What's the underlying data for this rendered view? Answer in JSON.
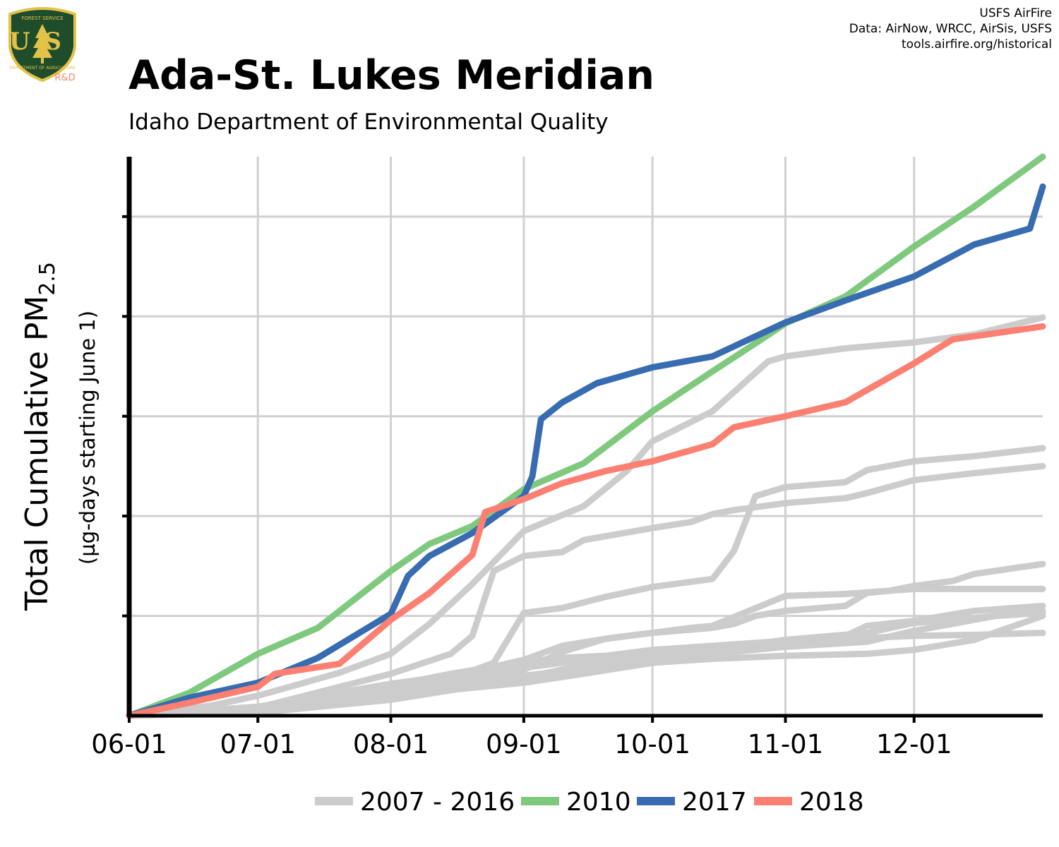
{
  "header": {
    "title": "Ada-St. Lukes Meridian",
    "subtitle": "Idaho Department of Environmental Quality",
    "credits": [
      "USFS AirFire",
      "Data: AirNow, WRCC, AirSis, USFS",
      "tools.airfire.org/historical"
    ],
    "logo": {
      "shield_text": "US",
      "top_text": "FOREST SERVICE",
      "bottom_text": "DEPARTMENT OF AGRICULTURE",
      "badge": "R&D",
      "colors": {
        "shield": "#1f4d2c",
        "gold": "#e3c24a",
        "badge": "#f48772"
      }
    }
  },
  "chart_data": {
    "type": "line",
    "ylabel_main": "Total Cumulative PM",
    "ylabel_sub": "2.5",
    "ylabel_secondary": "(µg-days starting June 1)",
    "xlim": [
      "06-01",
      "12-31"
    ],
    "ylim": [
      0,
      5600
    ],
    "y_ticks": [
      1000,
      2000,
      3000,
      4000,
      5000
    ],
    "y_tick_labels_shown": false,
    "x_ticks": [
      "06-01",
      "07-01",
      "08-01",
      "09-01",
      "10-01",
      "11-01",
      "12-01"
    ],
    "grid": true,
    "legend_position": "bottom",
    "legend": [
      {
        "label": "2007 - 2016",
        "color": "#cccccc"
      },
      {
        "label": "2010",
        "color": "#7fc97f"
      },
      {
        "label": "2017",
        "color": "#386cb0"
      },
      {
        "label": "2018",
        "color": "#fb8072"
      }
    ],
    "series": [
      {
        "legend_group": 0,
        "color": "#cccccc",
        "points": [
          [
            "06-01",
            0
          ],
          [
            "06-20",
            100
          ],
          [
            "07-01",
            200
          ],
          [
            "07-20",
            430
          ],
          [
            "08-01",
            620
          ],
          [
            "08-10",
            920
          ],
          [
            "08-20",
            1320
          ],
          [
            "09-01",
            1850
          ],
          [
            "09-15",
            2100
          ],
          [
            "09-25",
            2450
          ],
          [
            "10-01",
            2750
          ],
          [
            "10-15",
            3050
          ],
          [
            "10-28",
            3550
          ],
          [
            "11-01",
            3600
          ],
          [
            "11-15",
            3680
          ],
          [
            "12-01",
            3740
          ],
          [
            "12-15",
            3820
          ],
          [
            "12-31",
            3990
          ]
        ]
      },
      {
        "legend_group": 0,
        "color": "#cccccc",
        "points": [
          [
            "06-01",
            0
          ],
          [
            "07-01",
            80
          ],
          [
            "08-01",
            420
          ],
          [
            "08-15",
            620
          ],
          [
            "08-20",
            800
          ],
          [
            "08-25",
            1450
          ],
          [
            "09-01",
            1600
          ],
          [
            "09-10",
            1640
          ],
          [
            "09-15",
            1760
          ],
          [
            "10-01",
            1880
          ],
          [
            "10-10",
            1940
          ],
          [
            "10-15",
            2020
          ],
          [
            "10-20",
            2060
          ],
          [
            "11-01",
            2130
          ],
          [
            "11-15",
            2180
          ],
          [
            "11-20",
            2230
          ],
          [
            "12-01",
            2360
          ],
          [
            "12-15",
            2430
          ],
          [
            "12-31",
            2500
          ]
        ]
      },
      {
        "legend_group": 0,
        "color": "#cccccc",
        "points": [
          [
            "06-01",
            0
          ],
          [
            "07-01",
            40
          ],
          [
            "08-01",
            250
          ],
          [
            "08-15",
            370
          ],
          [
            "08-25",
            530
          ],
          [
            "09-01",
            1030
          ],
          [
            "09-10",
            1080
          ],
          [
            "09-20",
            1190
          ],
          [
            "10-01",
            1290
          ],
          [
            "10-15",
            1370
          ],
          [
            "10-20",
            1650
          ],
          [
            "10-25",
            2200
          ],
          [
            "11-01",
            2290
          ],
          [
            "11-15",
            2340
          ],
          [
            "11-20",
            2460
          ],
          [
            "12-01",
            2550
          ],
          [
            "12-15",
            2600
          ],
          [
            "12-31",
            2680
          ]
        ]
      },
      {
        "legend_group": 0,
        "color": "#cccccc",
        "points": [
          [
            "06-01",
            0
          ],
          [
            "07-01",
            80
          ],
          [
            "08-01",
            270
          ],
          [
            "08-20",
            440
          ],
          [
            "09-01",
            560
          ],
          [
            "09-10",
            700
          ],
          [
            "09-20",
            770
          ],
          [
            "10-01",
            830
          ],
          [
            "10-15",
            880
          ],
          [
            "10-20",
            920
          ],
          [
            "10-25",
            1000
          ],
          [
            "11-01",
            1050
          ],
          [
            "11-15",
            1100
          ],
          [
            "11-20",
            1230
          ],
          [
            "11-25",
            1250
          ],
          [
            "12-01",
            1300
          ],
          [
            "12-10",
            1350
          ],
          [
            "12-15",
            1420
          ],
          [
            "12-31",
            1520
          ]
        ]
      },
      {
        "legend_group": 0,
        "color": "#cccccc",
        "points": [
          [
            "06-01",
            0
          ],
          [
            "07-01",
            50
          ],
          [
            "08-01",
            230
          ],
          [
            "09-01",
            460
          ],
          [
            "09-10",
            640
          ],
          [
            "09-20",
            770
          ],
          [
            "09-25",
            800
          ],
          [
            "10-01",
            830
          ],
          [
            "10-10",
            880
          ],
          [
            "10-15",
            900
          ],
          [
            "11-01",
            1200
          ],
          [
            "11-15",
            1220
          ],
          [
            "12-01",
            1270
          ],
          [
            "12-15",
            1270
          ],
          [
            "12-31",
            1270
          ]
        ]
      },
      {
        "legend_group": 0,
        "color": "#cccccc",
        "points": [
          [
            "06-01",
            0
          ],
          [
            "07-01",
            70
          ],
          [
            "08-01",
            300
          ],
          [
            "08-15",
            420
          ],
          [
            "09-01",
            540
          ],
          [
            "09-10",
            580
          ],
          [
            "09-20",
            600
          ],
          [
            "10-01",
            660
          ],
          [
            "10-15",
            700
          ],
          [
            "11-01",
            750
          ],
          [
            "11-15",
            800
          ],
          [
            "11-20",
            900
          ],
          [
            "12-01",
            950
          ],
          [
            "12-15",
            1050
          ],
          [
            "12-31",
            1100
          ]
        ]
      },
      {
        "legend_group": 0,
        "color": "#cccccc",
        "points": [
          [
            "06-01",
            0
          ],
          [
            "07-01",
            90
          ],
          [
            "08-01",
            320
          ],
          [
            "08-20",
            430
          ],
          [
            "09-01",
            480
          ],
          [
            "09-15",
            560
          ],
          [
            "10-01",
            610
          ],
          [
            "10-15",
            660
          ],
          [
            "11-01",
            760
          ],
          [
            "11-20",
            830
          ],
          [
            "12-01",
            930
          ],
          [
            "12-15",
            980
          ],
          [
            "12-31",
            1050
          ]
        ]
      },
      {
        "legend_group": 0,
        "color": "#cccccc",
        "points": [
          [
            "06-01",
            0
          ],
          [
            "07-01",
            60
          ],
          [
            "08-01",
            240
          ],
          [
            "08-20",
            330
          ],
          [
            "09-01",
            400
          ],
          [
            "09-15",
            470
          ],
          [
            "10-01",
            560
          ],
          [
            "10-15",
            620
          ],
          [
            "11-01",
            690
          ],
          [
            "11-20",
            740
          ],
          [
            "12-01",
            850
          ],
          [
            "12-20",
            1000
          ],
          [
            "12-31",
            1030
          ]
        ]
      },
      {
        "legend_group": 0,
        "color": "#cccccc",
        "points": [
          [
            "06-01",
            0
          ],
          [
            "07-01",
            30
          ],
          [
            "08-01",
            160
          ],
          [
            "08-20",
            290
          ],
          [
            "09-01",
            380
          ],
          [
            "09-15",
            510
          ],
          [
            "10-01",
            600
          ],
          [
            "10-15",
            650
          ],
          [
            "11-01",
            700
          ],
          [
            "11-15",
            770
          ],
          [
            "12-01",
            800
          ],
          [
            "12-15",
            810
          ],
          [
            "12-31",
            830
          ]
        ]
      },
      {
        "legend_group": 0,
        "color": "#cccccc",
        "points": [
          [
            "06-01",
            0
          ],
          [
            "07-01",
            60
          ],
          [
            "08-01",
            200
          ],
          [
            "08-20",
            280
          ],
          [
            "09-01",
            330
          ],
          [
            "09-15",
            420
          ],
          [
            "10-01",
            530
          ],
          [
            "10-15",
            570
          ],
          [
            "11-01",
            600
          ],
          [
            "11-20",
            620
          ],
          [
            "12-01",
            660
          ],
          [
            "12-15",
            760
          ],
          [
            "12-31",
            1000
          ]
        ]
      },
      {
        "name": "2010",
        "color": "#7fc97f",
        "points": [
          [
            "06-01",
            0
          ],
          [
            "06-15",
            230
          ],
          [
            "07-01",
            620
          ],
          [
            "07-15",
            880
          ],
          [
            "08-01",
            1450
          ],
          [
            "08-10",
            1720
          ],
          [
            "08-20",
            1900
          ],
          [
            "09-01",
            2270
          ],
          [
            "09-15",
            2530
          ],
          [
            "10-01",
            3050
          ],
          [
            "10-15",
            3450
          ],
          [
            "10-25",
            3730
          ],
          [
            "11-01",
            3930
          ],
          [
            "11-15",
            4200
          ],
          [
            "12-01",
            4700
          ],
          [
            "12-15",
            5100
          ],
          [
            "12-31",
            5600
          ]
        ]
      },
      {
        "name": "2017",
        "color": "#386cb0",
        "points": [
          [
            "06-01",
            0
          ],
          [
            "06-15",
            180
          ],
          [
            "07-01",
            330
          ],
          [
            "07-15",
            580
          ],
          [
            "08-01",
            1020
          ],
          [
            "08-05",
            1400
          ],
          [
            "08-10",
            1600
          ],
          [
            "08-20",
            1830
          ],
          [
            "09-01",
            2200
          ],
          [
            "09-03",
            2400
          ],
          [
            "09-05",
            2970
          ],
          [
            "09-10",
            3140
          ],
          [
            "09-18",
            3330
          ],
          [
            "10-01",
            3490
          ],
          [
            "10-15",
            3600
          ],
          [
            "10-20",
            3700
          ],
          [
            "11-01",
            3940
          ],
          [
            "11-15",
            4160
          ],
          [
            "12-01",
            4400
          ],
          [
            "12-15",
            4720
          ],
          [
            "12-28",
            4880
          ],
          [
            "12-31",
            5300
          ]
        ]
      },
      {
        "name": "2018",
        "color": "#fb8072",
        "points": [
          [
            "06-01",
            0
          ],
          [
            "06-15",
            130
          ],
          [
            "07-01",
            290
          ],
          [
            "07-05",
            420
          ],
          [
            "07-20",
            520
          ],
          [
            "08-01",
            960
          ],
          [
            "08-10",
            1230
          ],
          [
            "08-20",
            1610
          ],
          [
            "08-23",
            2040
          ],
          [
            "09-01",
            2170
          ],
          [
            "09-10",
            2330
          ],
          [
            "09-20",
            2450
          ],
          [
            "10-01",
            2550
          ],
          [
            "10-15",
            2720
          ],
          [
            "10-20",
            2890
          ],
          [
            "11-01",
            3000
          ],
          [
            "11-15",
            3140
          ],
          [
            "12-01",
            3530
          ],
          [
            "12-10",
            3770
          ],
          [
            "12-31",
            3900
          ]
        ]
      }
    ]
  }
}
